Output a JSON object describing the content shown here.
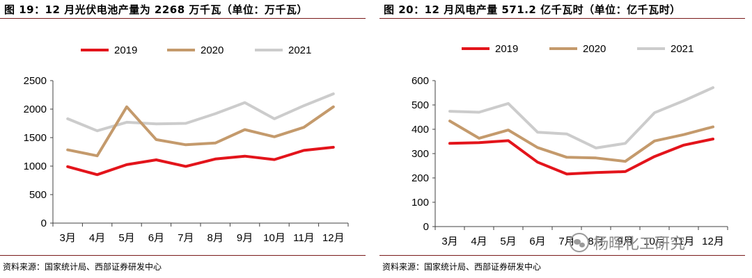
{
  "colors": {
    "y2019": "#e3141b",
    "y2020": "#c49a6c",
    "y2021": "#cccccc",
    "axis": "#404040",
    "rule": "#7a1a1a"
  },
  "left": {
    "title": "图 19：12 月光伏电池产量为 2268 万千瓦（单位：万千瓦）",
    "source": "资料来源：国家统计局、西部证券研发中心"
  },
  "right": {
    "title": "图 20：12 月风电产量 571.2 亿千瓦时（单位：亿千瓦时）",
    "source": "资料来源：国家统计局、西部证券研发中心"
  },
  "watermark": {
    "icon": "wechat-icon",
    "text": "杨晖化工研究"
  },
  "chart_data": [
    {
      "type": "line",
      "title": "图 19：12 月光伏电池产量为 2268 万千瓦（单位：万千瓦）",
      "categories": [
        "3月",
        "4月",
        "5月",
        "6月",
        "7月",
        "8月",
        "9月",
        "10月",
        "11月",
        "12月"
      ],
      "ylim": [
        0,
        2500
      ],
      "yticks": [
        0,
        500,
        1000,
        1500,
        2000,
        2500
      ],
      "series": [
        {
          "name": "2019",
          "color": "#e3141b",
          "values": [
            990,
            850,
            1025,
            1110,
            995,
            1125,
            1175,
            1115,
            1275,
            1330
          ]
        },
        {
          "name": "2020",
          "color": "#c49a6c",
          "values": [
            1285,
            1180,
            2040,
            1465,
            1375,
            1405,
            1640,
            1515,
            1680,
            2040
          ]
        },
        {
          "name": "2021",
          "color": "#cccccc",
          "values": [
            1830,
            1620,
            1770,
            1740,
            1750,
            1920,
            2115,
            1830,
            2060,
            2268
          ]
        }
      ],
      "legend": "top"
    },
    {
      "type": "line",
      "title": "图 20：12 月风电产量 571.2 亿千瓦时（单位：亿千瓦时）",
      "categories": [
        "3月",
        "4月",
        "5月",
        "6月",
        "7月",
        "8月",
        "9月",
        "10月",
        "11月",
        "12月"
      ],
      "ylim": [
        0,
        600
      ],
      "yticks": [
        0,
        100,
        200,
        300,
        400,
        500,
        600
      ],
      "series": [
        {
          "name": "2019",
          "color": "#e3141b",
          "values": [
            342,
            345,
            353,
            265,
            216,
            222,
            226,
            288,
            335,
            360
          ]
        },
        {
          "name": "2020",
          "color": "#c49a6c",
          "values": [
            434,
            363,
            397,
            325,
            285,
            282,
            268,
            352,
            378,
            410
          ]
        },
        {
          "name": "2021",
          "color": "#cccccc",
          "values": [
            474,
            470,
            506,
            388,
            381,
            323,
            342,
            468,
            517,
            571.2
          ]
        }
      ],
      "legend": "top"
    }
  ]
}
